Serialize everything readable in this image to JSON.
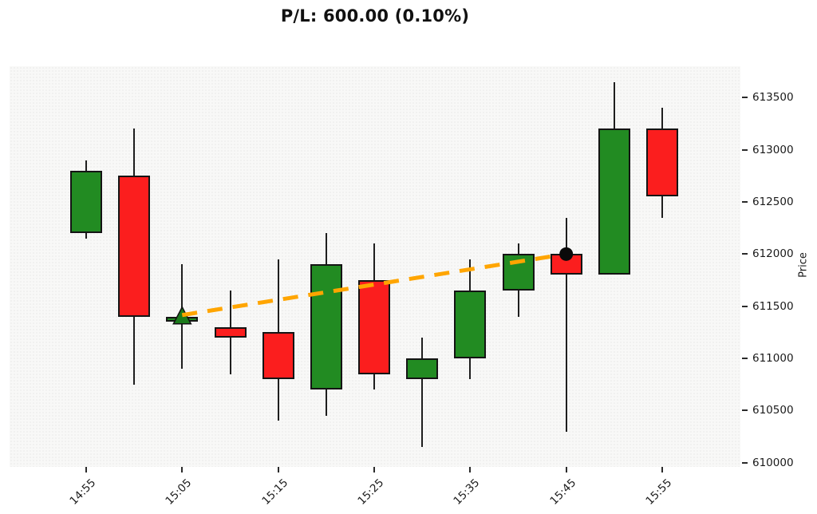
{
  "header": {
    "title": "P/L: 600.00 (0.10%)"
  },
  "chart_data": {
    "type": "candlestick",
    "title": "P/L: 600.00 (0.10%)",
    "xlabel": "",
    "ylabel": "Price",
    "grid": false,
    "legend": "none",
    "ylim": [
      609960,
      613800
    ],
    "y_ticks": [
      610000,
      610500,
      611000,
      611500,
      612000,
      612500,
      613000,
      613500
    ],
    "x_tick_labels": [
      "14:55",
      "15:05",
      "15:15",
      "15:25",
      "15:35",
      "15:45",
      "15:55"
    ],
    "candles": [
      {
        "time": "14:55",
        "open": 612200,
        "high": 612900,
        "low": 612150,
        "close": 612800
      },
      {
        "time": "15:00",
        "open": 612750,
        "high": 613200,
        "low": 610750,
        "close": 611400
      },
      {
        "time": "15:05",
        "open": 611350,
        "high": 611900,
        "low": 610900,
        "close": 611400
      },
      {
        "time": "15:10",
        "open": 611300,
        "high": 611650,
        "low": 610850,
        "close": 611200
      },
      {
        "time": "15:15",
        "open": 611250,
        "high": 611950,
        "low": 610400,
        "close": 610800
      },
      {
        "time": "15:20",
        "open": 610700,
        "high": 612200,
        "low": 610450,
        "close": 611900
      },
      {
        "time": "15:25",
        "open": 611750,
        "high": 612100,
        "low": 610700,
        "close": 610850
      },
      {
        "time": "15:30",
        "open": 610800,
        "high": 611200,
        "low": 610150,
        "close": 611000
      },
      {
        "time": "15:35",
        "open": 611000,
        "high": 611950,
        "low": 610800,
        "close": 611650
      },
      {
        "time": "15:40",
        "open": 611650,
        "high": 612100,
        "low": 611400,
        "close": 612000
      },
      {
        "time": "15:45",
        "open": 612000,
        "high": 612350,
        "low": 610300,
        "close": 611800
      },
      {
        "time": "15:50",
        "open": 611800,
        "high": 613650,
        "low": 611800,
        "close": 613200
      },
      {
        "time": "15:55",
        "open": 613200,
        "high": 613400,
        "low": 612350,
        "close": 612550
      }
    ],
    "trade": {
      "pnl": "600.00",
      "pnl_pct": "0.10%",
      "entry": {
        "time": "15:05",
        "price": 611400,
        "marker": "triangle-up",
        "color": "#1b7a1b"
      },
      "exit": {
        "time": "15:45",
        "price": 612000,
        "marker": "circle",
        "color": "#0a0a0a"
      },
      "line": {
        "color": "#ffa500",
        "style": "dashed"
      }
    },
    "colors": {
      "up": "#228b22",
      "down": "#fb1e1e",
      "edge": "#141414",
      "wick": "#1e1e1e",
      "plot_bg": "#f8f8f7",
      "fig_bg": "#ffffff"
    }
  }
}
